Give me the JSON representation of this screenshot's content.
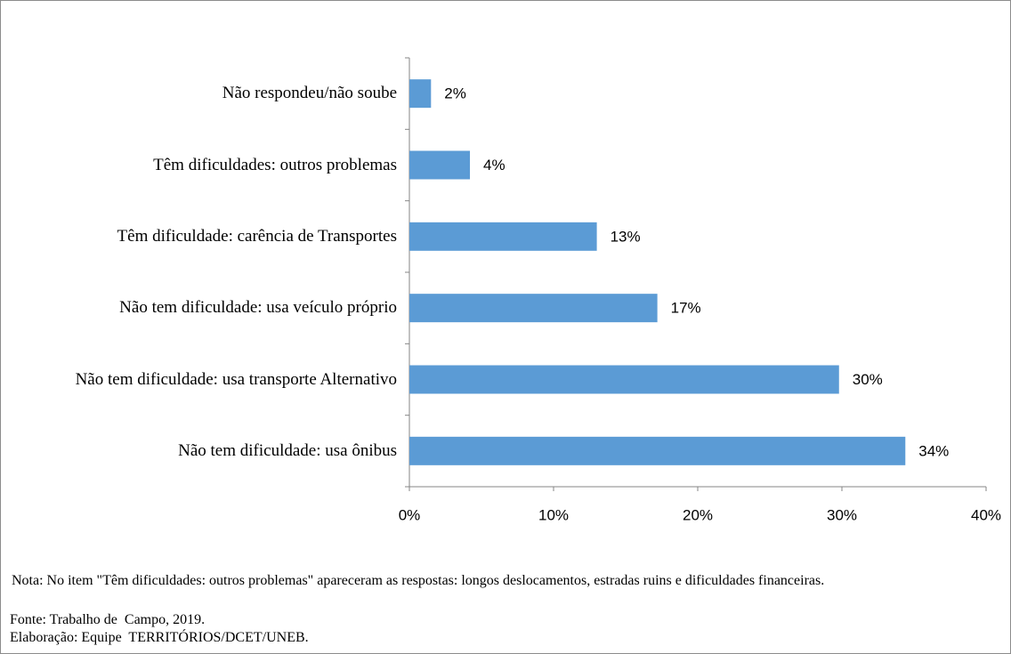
{
  "chart_data": {
    "type": "barh",
    "categories": [
      "Não respondeu/não soube",
      "Têm dificuldades: outros problemas",
      "Têm dificuldade: carência de Transportes",
      "Não tem dificuldade: usa veículo próprio",
      "Não tem dificuldade: usa transporte Alternativo",
      "Não tem dificuldade: usa ônibus"
    ],
    "values": [
      1.5,
      4.2,
      13.0,
      17.2,
      29.8,
      34.4
    ],
    "value_labels": [
      "2%",
      "4%",
      "13%",
      "17%",
      "30%",
      "34%"
    ],
    "color": "#5b9bd5",
    "xlim": [
      0,
      40
    ],
    "xticks": [
      {
        "value": 0,
        "label": "0%"
      },
      {
        "value": 10,
        "label": "10%"
      },
      {
        "value": 20,
        "label": "20%"
      },
      {
        "value": 30,
        "label": "30%"
      },
      {
        "value": 40,
        "label": "40%"
      }
    ]
  },
  "note": "Nota: No item \"Têm dificuldades: outros problemas\" apareceram as respostas: longos deslocamentos, estradas ruins e dificuldades financeiras.",
  "source": "Fonte: Trabalho de  Campo, 2019.",
  "credits": "Elaboração: Equipe  TERRITÓRIOS/DCET/UNEB."
}
